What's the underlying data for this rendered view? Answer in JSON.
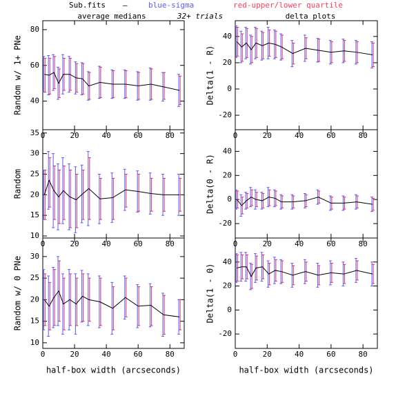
{
  "header": {
    "file": "Sub.fits",
    "sep": "–",
    "blue": "blue-sigma",
    "red": "red-upper/lower quartile",
    "left": "average medians",
    "center": "32+ trials",
    "right": "delta plots"
  },
  "chart_data": [
    {
      "type": "errorbar",
      "ylabel": "Random w/ 1+ PNe",
      "xlim": [
        0,
        89
      ],
      "xticks": [
        0,
        20,
        40,
        60,
        80
      ],
      "ylim": [
        24,
        85
      ],
      "yticks": [
        40,
        60,
        80
      ],
      "x": [
        1,
        4,
        7,
        10,
        13,
        17,
        21,
        25,
        29,
        36,
        44,
        52,
        60,
        68,
        76,
        86
      ],
      "values": [
        55,
        54.5,
        56,
        50,
        55,
        55,
        53,
        52.5,
        48.5,
        50.5,
        49.5,
        49.5,
        48.5,
        49.5,
        48,
        46
      ],
      "sigma": [
        10,
        11,
        10,
        9,
        11,
        10,
        9,
        9,
        8,
        9,
        8,
        8,
        8,
        9,
        8,
        9
      ],
      "q_low": [
        45,
        44,
        47,
        42,
        46,
        46,
        45,
        44,
        41,
        42,
        42,
        42,
        41,
        41,
        41,
        38
      ],
      "q_high": [
        64,
        64,
        65,
        58,
        64,
        64,
        61,
        61,
        56,
        59,
        57,
        57,
        56,
        58,
        56,
        54
      ],
      "color": "#000000",
      "sigma_color": "#5a5aff",
      "quartile_color": "#d0306a"
    },
    {
      "type": "errorbar",
      "ylabel": "Delta(1 - R)",
      "xlim": [
        0,
        89
      ],
      "xticks": [
        0,
        20,
        40,
        60,
        80
      ],
      "ylim": [
        -31,
        52
      ],
      "yticks": [
        -20,
        0,
        20,
        40
      ],
      "x": [
        1,
        4,
        7,
        10,
        13,
        17,
        21,
        25,
        29,
        36,
        44,
        52,
        60,
        68,
        76,
        86
      ],
      "values": [
        36,
        32,
        35,
        30,
        35,
        33,
        35,
        34,
        32,
        27,
        31,
        29.5,
        28,
        29,
        28,
        26
      ],
      "sigma": [
        12,
        12,
        12,
        11,
        12,
        11,
        12,
        11,
        10,
        10,
        10,
        9,
        9,
        9,
        9,
        10
      ],
      "q_low": [
        25,
        21,
        24,
        20,
        24,
        23,
        25,
        24,
        23,
        19,
        23,
        21,
        20,
        21,
        20,
        17
      ],
      "q_high": [
        47,
        42,
        46,
        40,
        46,
        43,
        45,
        44,
        41,
        35,
        39,
        38,
        36,
        37,
        36,
        35
      ],
      "color": "#000000",
      "sigma_color": "#5a5aff",
      "quartile_color": "#d0306a"
    },
    {
      "type": "errorbar",
      "ylabel": "Random",
      "xlim": [
        0,
        89
      ],
      "xticks": [
        0,
        20,
        40,
        60,
        80
      ],
      "ylim": [
        9.5,
        35.8
      ],
      "yticks": [
        10,
        15,
        20,
        25,
        30,
        35
      ],
      "x": [
        1,
        4,
        7,
        10,
        13,
        17,
        21,
        25,
        29,
        36,
        44,
        52,
        60,
        68,
        76,
        86
      ],
      "values": [
        20,
        23.5,
        21,
        19.5,
        21,
        19.5,
        18.8,
        20.2,
        21.5,
        19,
        19.3,
        21.2,
        20.8,
        20.3,
        20,
        20
      ],
      "sigma": [
        6,
        7,
        9,
        8,
        8,
        8,
        8,
        7,
        9,
        6,
        6,
        5,
        5,
        5,
        5,
        5
      ],
      "q_low": [
        14,
        17,
        14,
        13,
        14,
        12,
        12,
        14,
        14,
        14,
        14,
        17,
        16,
        16,
        16,
        16
      ],
      "q_high": [
        26,
        29,
        27,
        26,
        27,
        26,
        25,
        26,
        29,
        24,
        24,
        25,
        25,
        24,
        24,
        24
      ],
      "color": "#000000",
      "sigma_color": "#5a5aff",
      "quartile_color": "#d0306a"
    },
    {
      "type": "errorbar",
      "ylabel": "Delta(0 - R)",
      "xlim": [
        0,
        89
      ],
      "xticks": [
        0,
        20,
        40,
        60,
        80
      ],
      "ylim": [
        -32,
        58
      ],
      "yticks": [
        -20,
        0,
        20,
        40
      ],
      "x": [
        1,
        4,
        7,
        10,
        13,
        17,
        21,
        25,
        29,
        36,
        44,
        52,
        60,
        68,
        76,
        86
      ],
      "values": [
        0,
        -5,
        -1,
        2,
        0,
        -1,
        2,
        1,
        -2,
        -2,
        -1,
        2,
        -3,
        -3,
        -2,
        -4
      ],
      "sigma": [
        8,
        9,
        7,
        8,
        8,
        7,
        8,
        7,
        6,
        6,
        6,
        6,
        6,
        6,
        6,
        6
      ],
      "q_low": [
        -7,
        -12,
        -7,
        -5,
        -6,
        -7,
        -5,
        -5,
        -7,
        -7,
        -6,
        -3,
        -8,
        -8,
        -7,
        -9
      ],
      "q_high": [
        7,
        2,
        5,
        8,
        6,
        5,
        8,
        7,
        3,
        3,
        4,
        7,
        2,
        2,
        3,
        1
      ],
      "color": "#000000",
      "sigma_color": "#5a5aff",
      "quartile_color": "#d0306a"
    },
    {
      "type": "errorbar",
      "ylabel": "Random w/ 0 PNe",
      "xlabel": "half-box width (arcseconds)",
      "xlim": [
        0,
        89
      ],
      "xticks": [
        0,
        20,
        40,
        60,
        80
      ],
      "ylim": [
        8.7,
        34.3
      ],
      "yticks": [
        10,
        15,
        20,
        25,
        30
      ],
      "x": [
        1,
        4,
        7,
        10,
        13,
        17,
        21,
        25,
        29,
        36,
        44,
        52,
        60,
        68,
        76,
        86
      ],
      "values": [
        20,
        18.5,
        20.5,
        22,
        19,
        20,
        19,
        20.8,
        20,
        19.5,
        18,
        20.5,
        18.5,
        18.7,
        16.5,
        16
      ],
      "sigma": [
        7,
        7,
        7,
        8,
        7,
        7,
        7,
        6,
        6,
        6,
        6,
        5,
        5,
        5,
        5,
        4
      ],
      "q_low": [
        14,
        13,
        14,
        15,
        13,
        14,
        14,
        15,
        15,
        14,
        13,
        16,
        14,
        14,
        12,
        13
      ],
      "q_high": [
        26,
        24,
        27,
        29,
        25,
        26,
        25,
        26,
        25,
        25,
        23,
        25,
        23,
        23,
        21,
        20
      ],
      "color": "#000000",
      "sigma_color": "#5a5aff",
      "quartile_color": "#d0306a"
    },
    {
      "type": "errorbar",
      "ylabel": "Delta(1 - 0)",
      "xlabel": "half-box width (arcseconds)",
      "xlim": [
        0,
        89
      ],
      "xticks": [
        0,
        20,
        40,
        60,
        80
      ],
      "ylim": [
        -32,
        60
      ],
      "yticks": [
        -20,
        0,
        20,
        40
      ],
      "x": [
        1,
        4,
        7,
        10,
        13,
        17,
        21,
        25,
        29,
        36,
        44,
        52,
        60,
        68,
        76,
        86
      ],
      "values": [
        35,
        36,
        36,
        28,
        35,
        36,
        30,
        33,
        32,
        29,
        32,
        29,
        31,
        30,
        33,
        30
      ],
      "sigma": [
        12,
        12,
        12,
        11,
        12,
        12,
        11,
        11,
        10,
        10,
        10,
        10,
        10,
        10,
        10,
        10
      ],
      "q_low": [
        24,
        26,
        26,
        18,
        25,
        26,
        21,
        24,
        23,
        21,
        24,
        21,
        23,
        22,
        25,
        22
      ],
      "q_high": [
        46,
        46,
        46,
        38,
        45,
        46,
        39,
        42,
        41,
        37,
        40,
        37,
        39,
        38,
        41,
        38
      ],
      "color": "#000000",
      "sigma_color": "#5a5aff",
      "quartile_color": "#d0306a"
    }
  ]
}
